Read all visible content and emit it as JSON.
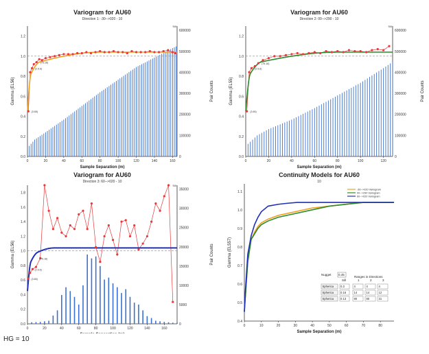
{
  "charts": [
    {
      "title": "Variogram for AU60",
      "subtitle": "Direction 1: -30-->020 - 10",
      "xlabel": "Sample Separation (m)",
      "ylabel": "Gamma (EL56)",
      "y2label": "Pair Counts",
      "xticks": [
        "0",
        "20",
        "40",
        "60",
        "80",
        "100",
        "120",
        "140",
        "160"
      ],
      "yticks": [
        "0.0",
        "0.2",
        "0.4",
        "0.6",
        "0.8",
        "1.0",
        "1.2"
      ],
      "y2ticks": [
        "0",
        "100000",
        "200000",
        "300000",
        "400000",
        "500000",
        "600000"
      ],
      "sill_label": "Sill",
      "annotations": [
        "(75.16)",
        "(2.5.6)",
        "(3.65)"
      ]
    },
    {
      "title": "Variogram for AU60",
      "subtitle": "Direction 2: 00-->290 - 10",
      "xlabel": "Sample Separation (m)",
      "ylabel": "Gamma (EL55)",
      "y2label": "Pair Counts",
      "xticks": [
        "0",
        "20",
        "40",
        "60",
        "80",
        "100",
        "120"
      ],
      "yticks": [
        "0.0",
        "0.2",
        "0.4",
        "0.6",
        "0.8",
        "1.0",
        "1.2"
      ],
      "y2ticks": [
        "0",
        "100000",
        "200000",
        "300000",
        "400000",
        "500000",
        "600000"
      ],
      "sill_label": "Sill",
      "annotations": [
        "(75.16)",
        "(2.5.6)",
        "(3.65)"
      ]
    },
    {
      "title": "Variogram for AU60",
      "subtitle": "Direction 3: 60-->020 - 10",
      "xlabel": "Sample Separation (m)",
      "ylabel": "Gamma (EL56)",
      "y2label": "Pair Counts",
      "xticks": [
        "0",
        "20",
        "40",
        "60",
        "80",
        "100",
        "120",
        "140",
        "160"
      ],
      "yticks": [
        "0.0",
        "0.2",
        "0.4",
        "0.6",
        "0.8",
        "1.0",
        "1.2",
        "1.4",
        "1.6",
        "1.8"
      ],
      "y2ticks": [
        "0",
        "5000",
        "10000",
        "15000",
        "20000",
        "25000",
        "30000",
        "35000"
      ],
      "sill_label": "Sill",
      "annotations": [
        "(75.16)",
        "(2.5.6)",
        "(3.65)"
      ]
    },
    {
      "title": "Continuity Models for AU60",
      "subtitle": "10",
      "xlabel": "Sample Separation (m)",
      "ylabel": "Gamma (EL557)",
      "xticks": [
        "0",
        "10",
        "20",
        "30",
        "40",
        "50",
        "60",
        "70",
        "80"
      ],
      "yticks": [
        "0.4",
        "0.5",
        "0.6",
        "0.7",
        "0.8",
        "0.9",
        "1.0",
        "1.1"
      ],
      "legend": [
        "-30-->020 Variogram",
        "00-->290 Variogram",
        "60-->020 Variogram"
      ],
      "table": {
        "nugget_label": "Nugget",
        "nugget_value": "0.45",
        "sill_header": "Sill",
        "ranges_header": "Ranges in Directions",
        "dir_headers": [
          "1",
          "2",
          "3"
        ],
        "rows": [
          {
            "type": "Spherica",
            "sill": "0.3",
            "r": [
              "4",
              "4",
              "4"
            ]
          },
          {
            "type": "Spherica",
            "sill": "0.16",
            "r": [
              "14",
              "14",
              "12"
            ]
          },
          {
            "type": "Spherica",
            "sill": "0.13",
            "r": [
              "80",
              "80",
              "31"
            ]
          }
        ]
      }
    }
  ],
  "chart_data": [
    {
      "type": "line",
      "title": "Variogram for AU60",
      "xlabel": "Sample Separation (m)",
      "ylabel": "Gamma (EL56)",
      "xlim": [
        0,
        165
      ],
      "ylim": [
        0,
        1.3
      ],
      "y2lim": [
        0,
        620000
      ],
      "sill": 1.0,
      "colors": {
        "experimental": "#e8383a",
        "model": "#f0a020",
        "bars": "#3a6fd0"
      },
      "experimental": {
        "x": [
          1,
          3,
          5,
          7,
          10,
          13,
          16,
          20,
          25,
          30,
          35,
          40,
          45,
          50,
          55,
          60,
          65,
          70,
          75,
          80,
          85,
          90,
          95,
          100,
          105,
          110,
          115,
          120,
          125,
          130,
          135,
          140,
          145,
          150,
          155,
          160,
          163
        ],
        "y": [
          0.45,
          0.84,
          0.88,
          0.92,
          0.94,
          0.97,
          0.96,
          0.98,
          0.99,
          1.0,
          1.01,
          1.02,
          1.02,
          1.02,
          1.03,
          1.03,
          1.04,
          1.03,
          1.04,
          1.05,
          1.04,
          1.04,
          1.05,
          1.04,
          1.04,
          1.03,
          1.05,
          1.04,
          1.04,
          1.04,
          1.05,
          1.04,
          1.04,
          1.05,
          1.06,
          1.04,
          1.03
        ]
      },
      "pair_counts": {
        "x": [
          2,
          8,
          15,
          25,
          40,
          60,
          80,
          100,
          120,
          140,
          160,
          165
        ],
        "y": [
          50000,
          80000,
          100000,
          130000,
          175000,
          240000,
          305000,
          365000,
          425000,
          470000,
          515000,
          525000
        ]
      }
    },
    {
      "type": "line",
      "title": "Variogram for AU60",
      "xlabel": "Sample Separation (m)",
      "ylabel": "Gamma (EL55)",
      "xlim": [
        0,
        128
      ],
      "ylim": [
        0,
        1.3
      ],
      "y2lim": [
        0,
        620000
      ],
      "sill": 1.0,
      "colors": {
        "experimental": "#e8383a",
        "model": "#2a8a2a",
        "bars": "#3a6fd0"
      },
      "experimental": {
        "x": [
          1,
          3,
          5,
          8,
          11,
          15,
          20,
          25,
          30,
          35,
          40,
          45,
          50,
          55,
          60,
          65,
          70,
          75,
          80,
          85,
          90,
          95,
          100,
          105,
          110,
          115,
          120,
          125
        ],
        "y": [
          0.45,
          0.84,
          0.88,
          0.9,
          0.93,
          0.96,
          0.98,
          1.0,
          1.0,
          1.01,
          1.02,
          1.03,
          1.02,
          1.03,
          1.04,
          1.03,
          1.05,
          1.04,
          1.05,
          1.04,
          1.06,
          1.05,
          1.05,
          1.04,
          1.06,
          1.07,
          1.06,
          1.1
        ]
      },
      "pair_counts": {
        "x": [
          2,
          10,
          20,
          40,
          60,
          80,
          100,
          120,
          128
        ],
        "y": [
          60000,
          100000,
          130000,
          175000,
          230000,
          290000,
          350000,
          420000,
          450000
        ]
      }
    },
    {
      "type": "line",
      "title": "Variogram for AU60",
      "xlabel": "Sample Separation (m)",
      "ylabel": "Gamma (EL56)",
      "xlim": [
        0,
        175
      ],
      "ylim": [
        0,
        1.9
      ],
      "y2lim": [
        0,
        36000
      ],
      "sill": 1.0,
      "colors": {
        "experimental": "#e8383a",
        "model": "#1f2fb8",
        "bars": "#3a6fd0"
      },
      "experimental": {
        "x": [
          1,
          3,
          6,
          10,
          15,
          20,
          25,
          30,
          35,
          40,
          45,
          50,
          55,
          60,
          65,
          70,
          75,
          80,
          85,
          90,
          95,
          100,
          105,
          110,
          115,
          120,
          125,
          130,
          135,
          140,
          145,
          150,
          155,
          160,
          165,
          170
        ],
        "y": [
          0.62,
          0.7,
          0.75,
          0.78,
          0.9,
          1.9,
          1.55,
          1.3,
          1.45,
          1.25,
          1.2,
          1.35,
          1.3,
          1.5,
          1.55,
          1.3,
          1.65,
          1.05,
          0.85,
          1.2,
          1.35,
          1.15,
          0.95,
          1.4,
          1.42,
          1.2,
          1.35,
          1.02,
          1.1,
          1.2,
          1.4,
          1.65,
          1.55,
          1.75,
          1.9,
          0.3
        ]
      },
      "pair_counts": {
        "x": [
          5,
          15,
          25,
          35,
          40,
          45,
          50,
          55,
          60,
          65,
          70,
          75,
          80,
          85,
          90,
          95,
          100,
          105,
          110,
          115,
          120,
          125,
          130,
          135,
          140,
          145,
          150,
          160,
          170
        ],
        "y": [
          400,
          500,
          800,
          3500,
          7500,
          9500,
          8500,
          7000,
          5000,
          10000,
          18000,
          17000,
          17500,
          15000,
          11500,
          12000,
          10500,
          9500,
          8000,
          9000,
          7000,
          5500,
          5000,
          3500,
          2000,
          1500,
          800,
          500,
          300
        ]
      }
    },
    {
      "type": "line",
      "title": "Continuity Models for AU60",
      "xlabel": "Sample Separation (m)",
      "ylabel": "Gamma (EL557)",
      "xlim": [
        0,
        88
      ],
      "ylim": [
        0.4,
        1.14
      ],
      "series": [
        {
          "name": "-30-->020 Variogram",
          "color": "#f0a020",
          "x": [
            0,
            0.5,
            2,
            4,
            6,
            8,
            10,
            14,
            20,
            30,
            40,
            50,
            60,
            70,
            80,
            88
          ],
          "y": [
            0.45,
            0.52,
            0.72,
            0.84,
            0.88,
            0.91,
            0.93,
            0.95,
            0.97,
            0.99,
            1.01,
            1.02,
            1.03,
            1.04,
            1.04,
            1.04
          ]
        },
        {
          "name": "00-->290 Variogram",
          "color": "#2a8a2a",
          "x": [
            0,
            0.5,
            2,
            4,
            6,
            8,
            10,
            14,
            20,
            30,
            40,
            50,
            60,
            70,
            80,
            88
          ],
          "y": [
            0.45,
            0.52,
            0.72,
            0.84,
            0.87,
            0.9,
            0.92,
            0.94,
            0.96,
            0.98,
            1.0,
            1.02,
            1.03,
            1.04,
            1.04,
            1.04
          ]
        },
        {
          "name": "60-->020 Variogram",
          "color": "#1f2fb8",
          "x": [
            0,
            0.5,
            2,
            4,
            6,
            8,
            10,
            14,
            20,
            25,
            31,
            40,
            60,
            80,
            88
          ],
          "y": [
            0.45,
            0.55,
            0.76,
            0.86,
            0.92,
            0.96,
            0.99,
            1.02,
            1.03,
            1.035,
            1.04,
            1.04,
            1.04,
            1.04,
            1.04
          ]
        }
      ]
    }
  ],
  "footer": {
    "caption": "HG = 10"
  }
}
